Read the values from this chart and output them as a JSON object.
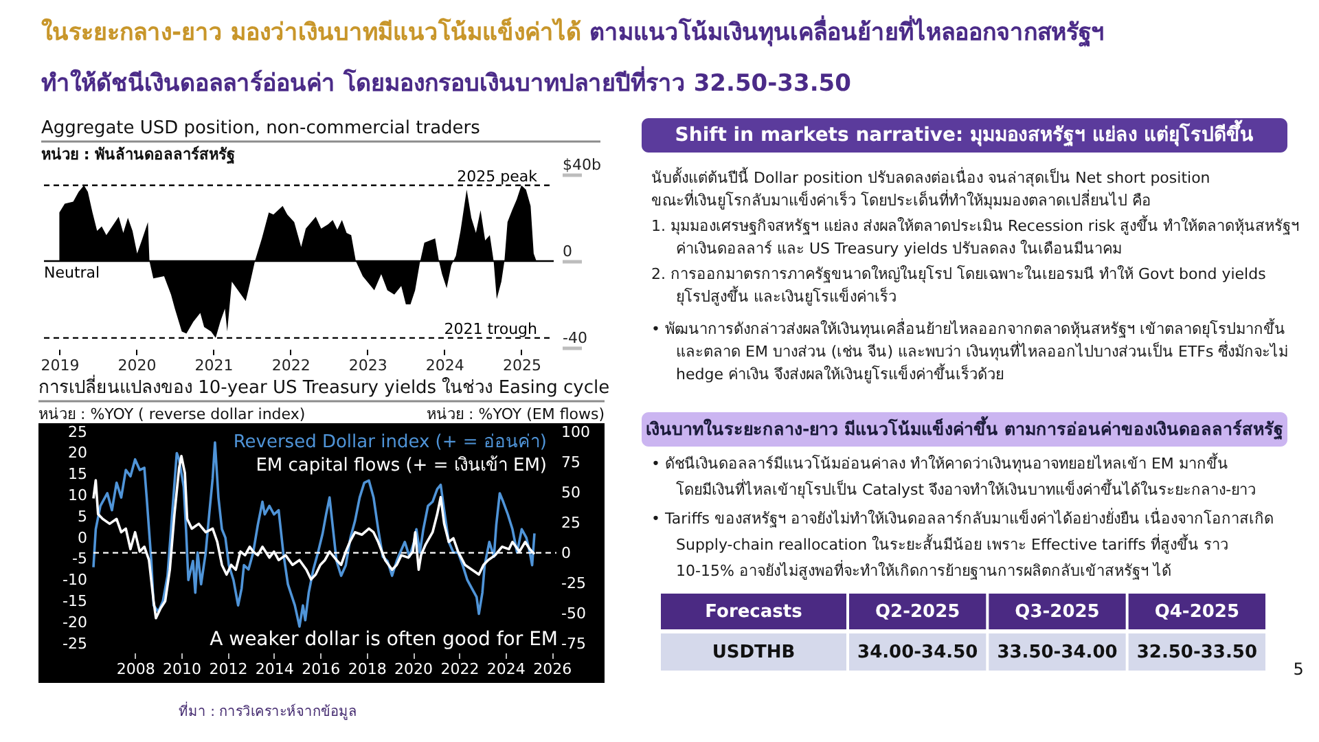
{
  "chart_data": [
    {
      "type": "other",
      "title": "ในระยะกลาง-ยาว มองว่าเงินบาทมีแนวโน้มแข็งค่าได้",
      "subtitle": "ตามแนวโน้มเงินทุนเคลื่อนย้ายที่ไหลออกจากสหรัฐฯ ทำให้ดัชนีเงินดอลลาร์อ่อนค่า โดยมองกรอบเงินบาทปลายปีที่ราว 32.50-33.50"
    },
    {
      "type": "area",
      "title": "Aggregate USD position, non-commercial traders",
      "subtitle": "หน่วย : พันล้านดอลลาร์สหรัฐ",
      "color": "#000000",
      "x": [
        2019.0,
        2019.07,
        2019.18,
        2019.25,
        2019.32,
        2019.37,
        2019.43,
        2019.49,
        2019.55,
        2019.61,
        2019.77,
        2019.83,
        2019.89,
        2019.95,
        2020.01,
        2020.07,
        2020.15,
        2020.17,
        2020.22,
        2020.36,
        2020.45,
        2020.5,
        2020.59,
        2020.65,
        2020.74,
        2020.83,
        2020.88,
        2020.97,
        2021.03,
        2021.09,
        2021.15,
        2021.18,
        2021.24,
        2021.3,
        2021.42,
        2021.48,
        2021.54,
        2021.63,
        2021.72,
        2021.78,
        2021.9,
        2021.96,
        2022.05,
        2022.14,
        2022.2,
        2022.33,
        2022.4,
        2022.49,
        2022.55,
        2022.61,
        2022.67,
        2022.73,
        2022.79,
        2022.85,
        2022.94,
        2023.09,
        2023.18,
        2023.26,
        2023.35,
        2023.44,
        2023.5,
        2023.56,
        2023.62,
        2023.68,
        2023.74,
        2023.88,
        2023.93,
        2023.97,
        2024.03,
        2024.09,
        2024.15,
        2024.21,
        2024.29,
        2024.35,
        2024.41,
        2024.47,
        2024.53,
        2024.59,
        2024.64,
        2024.68,
        2024.74,
        2024.78,
        2024.82,
        2024.88,
        2024.94,
        2025.0,
        2025.06,
        2025.12,
        2025.16,
        2025.2
      ],
      "values": [
        22.5,
        26.5,
        27.5,
        32,
        35,
        32,
        22.5,
        14,
        16,
        12,
        20.5,
        13,
        20,
        14,
        3.5,
        9.5,
        18,
        0,
        -8,
        -7,
        -15.5,
        -22,
        -32.5,
        -33.5,
        -28,
        -24,
        -30.5,
        -32.5,
        -35.5,
        -28,
        -22,
        -32.5,
        -9.5,
        -12.5,
        -18.5,
        -9.5,
        0,
        10.5,
        22.5,
        21.5,
        25.5,
        21.5,
        18,
        6.5,
        15,
        20.5,
        15,
        17,
        19,
        14.5,
        19,
        13,
        12,
        0,
        -7,
        -13.5,
        -6,
        -13.5,
        -15.5,
        -11.5,
        -20,
        -20,
        -13.5,
        -1,
        8.5,
        10.5,
        0,
        -6,
        -12.5,
        -2,
        2.5,
        14,
        33,
        20,
        13,
        23.5,
        9.5,
        12,
        0,
        -17.5,
        -9.5,
        0,
        18,
        23.5,
        28.5,
        35,
        33,
        25.5,
        3.5,
        -0.5
      ],
      "xlim": [
        2018.8,
        2025.42
      ],
      "xticks": [
        2019,
        2020,
        2021,
        2022,
        2023,
        2024,
        2025
      ],
      "ylim": [
        -40,
        40
      ],
      "yticks": [
        {
          "value": 40,
          "label": "$40b"
        },
        0,
        -40
      ],
      "ref_lines": [
        {
          "axis": "y",
          "value": 35,
          "label": "2025 peak",
          "line_style": "dashed"
        },
        {
          "axis": "y",
          "value": -35.5,
          "label": "2021 trough",
          "line_style": "dashed"
        },
        {
          "axis": "y",
          "value": 0,
          "label": "Neutral",
          "line_style": "solid"
        }
      ],
      "grid": false
    },
    {
      "type": "line",
      "title": "การเปลี่ยนแปลงของ 10-year US Treasury yields ในช่วง Easing cycle",
      "ylabel": "หน่วย : %YOY ( reverse dollar index)",
      "y2label": "หน่วย : %YOY (EM flows)",
      "series": [
        {
          "name": "Reversed Dollar index (+ = อ่อนค่า)",
          "color": "#4f94d8",
          "x": [
            2006.2,
            2006.3,
            2006.5,
            2006.8,
            2007.0,
            2007.2,
            2007.4,
            2007.6,
            2007.8,
            2008.0,
            2008.2,
            2008.4,
            2008.5,
            2008.7,
            2008.8,
            2009.0,
            2009.2,
            2009.4,
            2009.6,
            2009.8,
            2009.9,
            2010.1,
            2010.2,
            2010.3,
            2010.5,
            2010.6,
            2010.7,
            2010.85,
            2011.05,
            2011.2,
            2011.35,
            2011.45,
            2011.6,
            2011.75,
            2011.9,
            2012.05,
            2012.25,
            2012.45,
            2012.6,
            2012.7,
            2012.9,
            2013.1,
            2013.3,
            2013.5,
            2013.6,
            2013.8,
            2014.0,
            2014.2,
            2014.4,
            2014.6,
            2014.9,
            2015.1,
            2015.25,
            2015.35,
            2015.5,
            2015.7,
            2015.9,
            2016.1,
            2016.25,
            2016.4,
            2016.55,
            2016.7,
            2016.9,
            2017.1,
            2017.3,
            2017.5,
            2017.7,
            2017.9,
            2018.1,
            2018.3,
            2018.5,
            2018.7,
            2018.9,
            2019.1,
            2019.3,
            2019.45,
            2019.65,
            2019.85,
            2020.05,
            2020.15,
            2020.3,
            2020.45,
            2020.65,
            2020.85,
            2021.05,
            2021.2,
            2021.35,
            2021.55,
            2021.75,
            2021.95,
            2022.15,
            2022.35,
            2022.55,
            2022.75,
            2022.85,
            2023.0,
            2023.1,
            2023.3,
            2023.5,
            2023.6,
            2023.75,
            2023.9,
            2024.1,
            2024.3,
            2024.5,
            2024.7,
            2024.9,
            2025.05,
            2025.15,
            2025.25
          ],
          "values": [
            -7,
            2,
            7.5,
            10.5,
            6.5,
            13,
            9.5,
            16,
            14.5,
            18.5,
            16,
            16.5,
            9.5,
            -5.5,
            -16,
            -17.5,
            -15,
            -9,
            5.5,
            20,
            18.5,
            12,
            2,
            -10,
            -5.5,
            -13,
            -3.5,
            -11,
            -3.5,
            5.5,
            14,
            22.5,
            9.5,
            2,
            0,
            -6.5,
            -10,
            -16,
            -12,
            -6.5,
            -7.5,
            -3.5,
            3,
            8.5,
            5.5,
            7.5,
            5.5,
            6.5,
            -3.5,
            -11,
            -16,
            -21,
            -16,
            -19.5,
            -13,
            -7.5,
            -3.5,
            1,
            5.5,
            9.5,
            2,
            -5.5,
            -9,
            -6.5,
            0,
            4,
            9.5,
            13,
            13.5,
            9.5,
            2,
            -4.5,
            -5.5,
            -9,
            -5.5,
            -3.5,
            -1,
            -4.5,
            -1,
            2,
            -3.5,
            2,
            7.5,
            8.5,
            11.5,
            12.5,
            6.5,
            -1,
            -3.5,
            -3.5,
            -6.5,
            -10,
            -12,
            -14,
            -18,
            -13,
            -6.5,
            -1,
            -4.5,
            3,
            10.5,
            8.5,
            5.5,
            2,
            -3.5,
            2,
            0,
            -3.5,
            -6.5,
            1
          ]
        },
        {
          "name": "EM capital flows (+ = เงินเข้า EM)",
          "color": "#ffffff",
          "axis": "y2",
          "x": [
            2006.2,
            2006.3,
            2006.4,
            2006.6,
            2006.9,
            2007.2,
            2007.4,
            2007.6,
            2007.8,
            2008.0,
            2008.2,
            2008.4,
            2008.6,
            2008.8,
            2008.9,
            2009.1,
            2009.3,
            2009.5,
            2009.7,
            2009.9,
            2010.0,
            2010.15,
            2010.25,
            2010.45,
            2010.75,
            2011.05,
            2011.35,
            2011.55,
            2011.75,
            2011.95,
            2012.15,
            2012.35,
            2012.55,
            2012.75,
            2012.95,
            2013.1,
            2013.3,
            2013.5,
            2013.8,
            2014.0,
            2014.2,
            2014.5,
            2014.8,
            2015.1,
            2015.4,
            2015.6,
            2015.8,
            2016.0,
            2016.2,
            2016.4,
            2016.7,
            2016.9,
            2017.1,
            2017.3,
            2017.5,
            2017.8,
            2018.1,
            2018.3,
            2018.5,
            2018.8,
            2019.1,
            2019.3,
            2019.5,
            2019.8,
            2020.0,
            2020.1,
            2020.25,
            2020.35,
            2020.55,
            2020.85,
            2021.05,
            2021.2,
            2021.35,
            2021.55,
            2021.75,
            2021.95,
            2022.25,
            2022.55,
            2022.85,
            2023.05,
            2023.25,
            2023.55,
            2023.85,
            2024.15,
            2024.3,
            2024.6,
            2024.85,
            2025.05,
            2025.25
          ],
          "values": [
            45,
            60,
            32,
            28,
            24,
            28,
            17,
            20,
            3,
            17,
            1,
            5,
            -6,
            -40,
            -54,
            -46,
            -40,
            -14,
            32,
            70,
            80,
            66,
            28,
            20,
            24,
            17,
            20,
            9,
            -10,
            -18,
            -10,
            -14,
            1,
            -2,
            5,
            1,
            -2,
            5,
            -4,
            1,
            -6,
            -2,
            -10,
            -6,
            -14,
            -22,
            -18,
            -10,
            -6,
            1,
            -6,
            -10,
            1,
            10,
            17,
            15,
            20,
            17,
            9,
            -6,
            -14,
            -10,
            -2,
            -4,
            1,
            17,
            -14,
            -2,
            7,
            17,
            32,
            46,
            24,
            9,
            12,
            1,
            -10,
            -14,
            -18,
            -10,
            -6,
            -2,
            5,
            3,
            9,
            1,
            9,
            3,
            -1
          ]
        }
      ],
      "xlim": [
        2006.2,
        2026.2
      ],
      "xticks": [
        2008,
        2010,
        2012,
        2014,
        2016,
        2018,
        2020,
        2022,
        2024,
        2026
      ],
      "ylim": [
        -25,
        26.5
      ],
      "yticks": [
        -25,
        -20,
        -15,
        -10,
        -5,
        0,
        5,
        10,
        15,
        20,
        25
      ],
      "y2lim": [
        -75,
        105.25
      ],
      "y2ticks": [
        -75,
        -50,
        -25,
        0,
        25,
        50,
        75,
        100
      ],
      "ref_lines": [
        {
          "axis": "y2",
          "value": 0,
          "line_style": "dashed"
        }
      ],
      "annotations": [
        "A weaker dollar is often good for EM"
      ],
      "legend": "top right",
      "grid": false
    },
    {
      "type": "other",
      "annotations": [
        "Shift in markets narrative: มุมมองสหรัฐฯ แย่ลง แต่ยุโรปดีขึ้น",
        "นับตั้งแต่ต้นปีนี้ Dollar position ปรับลดลงต่อเนื่อง จนล่าสุดเป็น Net short position ขณะที่เงินยูโรกลับมาแข็งค่าเร็ว โดยประเด็นที่ทำให้มุมมองตลาดเปลี่ยนไป คือ",
        "1. มุมมองเศรษฐกิจสหรัฐฯ แย่ลง ส่งผลให้ตลาดประเมิน Recession risk สูงขึ้น ทำให้ตลาดหุ้นสหรัฐฯ ค่าเงินดอลลาร์ และ US Treasury yields ปรับลดลง ในเดือนมีนาคม",
        "2. การออกมาตรการภาครัฐขนาดใหญ่ในยุโรป โดยเฉพาะในเยอรมนี ทำให้ Govt bond yields ยุโรปสูงขึ้น และเงินยูโรแข็งค่าเร็ว",
        "• พัฒนาการดังกล่าวส่งผลให้เงินทุนเคลื่อนย้ายไหลออกจากตลาดหุ้นสหรัฐฯ เข้าตลาดยุโรปมากขึ้น และตลาด EM บางส่วน (เช่น จีน) และพบว่า เงินทุนที่ไหลออกไปบางส่วนเป็น ETFs ซึ่งมักจะไม่ hedge ค่าเงิน จึงส่งผลให้เงินยูโรแข็งค่าขึ้นเร็วด้วย",
        "เงินบาทในระยะกลาง-ยาว มีแนวโน้มแข็งค่าขึ้น ตามการอ่อนค่าของเงินดอลลาร์สหรัฐ",
        "• ดัชนีเงินดอลลาร์มีแนวโน้มอ่อนค่าลง ทำให้คาดว่าเงินทุนอาจทยอยไหลเข้า EM มากขึ้น โดยมีเงินที่ไหลเข้ายุโรปเป็น Catalyst จึงอาจทำให้เงินบาทแข็งค่าขึ้นได้ในระยะกลาง-ยาว",
        "• Tariffs ของสหรัฐฯ อาจยังไม่ทำให้เงินดอลลาร์กลับมาแข็งค่าได้อย่างยั่งยืน เนื่องจากโอกาสเกิด Supply-chain reallocation ในระยะสั้นมีน้อย เพราะ Effective tariffs ที่สูงขึ้น ราว 10-15% อาจยังไม่สูงพอที่จะทำให้เกิดการย้ายฐานการผลิตกลับเข้าสหรัฐฯ ได้",
        "5"
      ]
    },
    {
      "type": "other",
      "annotations": [
        "Forecasts",
        "Q2-2025",
        "Q3-2025",
        "Q4-2025",
        "USDTHB",
        "34.00-34.50",
        "33.50-34.00",
        "32.50-33.50"
      ]
    },
    {
      "type": "other",
      "annotations": [
        "ที่มา : การวิเคราะห์จากข้อมูล"
      ]
    }
  ]
}
